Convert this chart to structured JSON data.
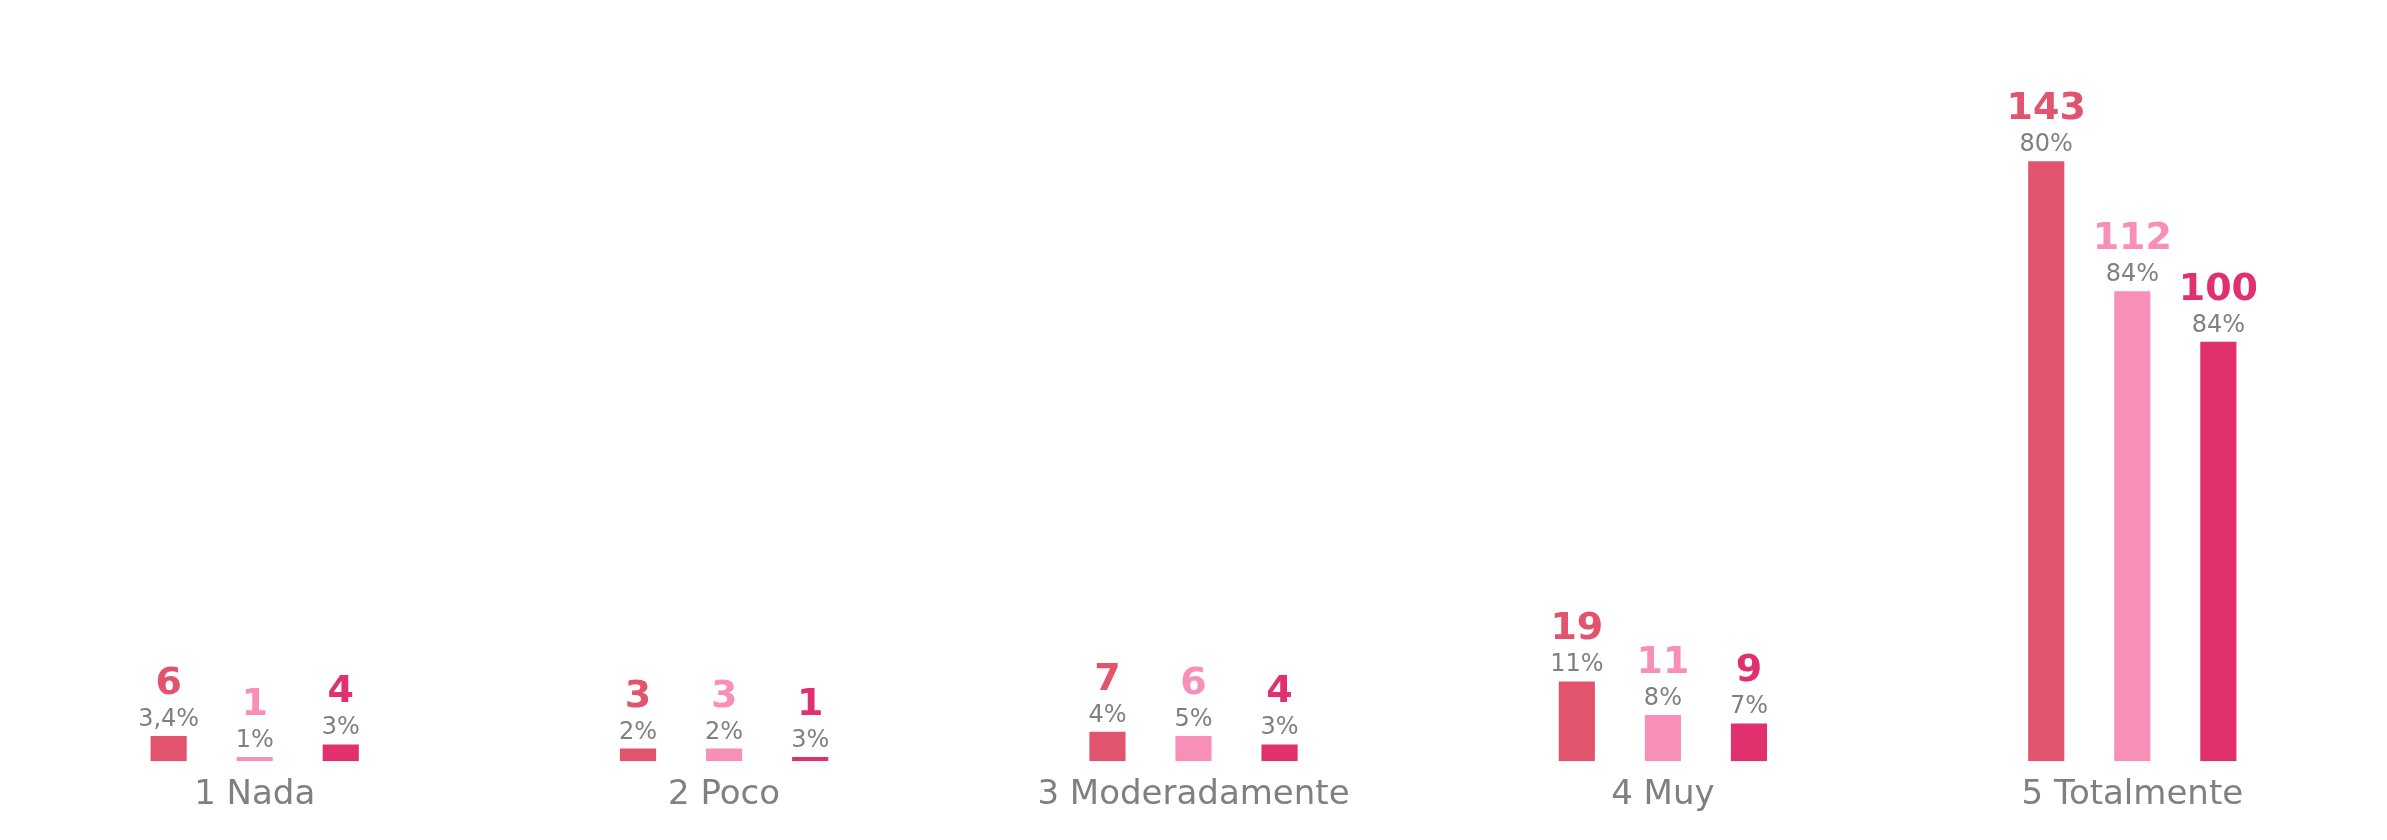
{
  "chart_data": {
    "type": "bar",
    "categories": [
      "1 Nada",
      "2 Poco",
      "3 Moderadamente",
      "4 Muy",
      "5 Totalmente"
    ],
    "series": [
      {
        "color": "#e2546e",
        "values": [
          6,
          3,
          7,
          19,
          143
        ],
        "value_labels": [
          "6\n3,4%",
          "3\n2%",
          "7\n4%",
          "19\n11%",
          "143\n80%"
        ]
      },
      {
        "color": "#f78fb9",
        "values": [
          1,
          3,
          6,
          11,
          112
        ],
        "value_labels": [
          "1\n1%",
          "3\n2%",
          "6\n5%",
          "11\n8%",
          "112\n84%"
        ]
      },
      {
        "color": "#e0306e",
        "values": [
          4,
          1,
          4,
          9,
          100
        ],
        "value_labels": [
          "4\n3%",
          "1\n3%",
          "4\n3%",
          "9\n7%",
          "100\n84%"
        ]
      }
    ],
    "grid": false,
    "legend": false,
    "tick_labels": "x"
  }
}
